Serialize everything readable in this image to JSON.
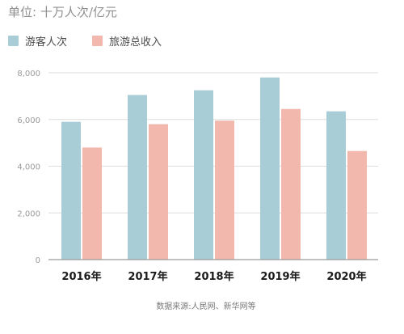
{
  "colors": {
    "visitors": "#a9cdd7",
    "revenue": "#f2b7ad"
  },
  "chart_data": {
    "type": "bar",
    "unit_label": "单位: 十万人次/亿元",
    "categories": [
      "2016年",
      "2017年",
      "2018年",
      "2019年",
      "2020年"
    ],
    "series": [
      {
        "name": "游客人次",
        "values": [
          5900,
          7050,
          7250,
          7800,
          6350
        ]
      },
      {
        "name": "旅游总收入",
        "values": [
          4800,
          5800,
          5950,
          6450,
          4650
        ]
      }
    ],
    "yticks": [
      "0",
      "2,000",
      "4,000",
      "6,000",
      "8,000"
    ],
    "ylim": [
      0,
      8000
    ],
    "grid": true,
    "legend": "top-left",
    "source": "数据来源:人民网、新华网等"
  }
}
